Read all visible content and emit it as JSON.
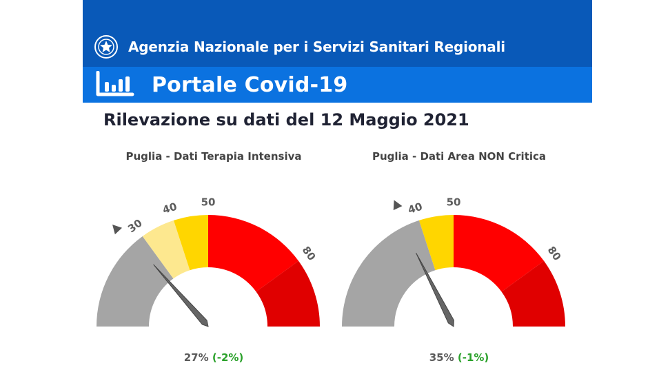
{
  "header": {
    "agency_title": "Agenzia Nazionale per i Servizi Sanitari Regionali",
    "portal_title": "Portale Covid-19"
  },
  "subtitle": "Rilevazione su dati del 12 Maggio 2021",
  "gauges": [
    {
      "title": "Puglia - Dati Terapia Intensiva",
      "value_text": "27%",
      "delta_text": "(-2%)",
      "value": 27,
      "threshold_marker": 30,
      "bands": [
        {
          "from": 0,
          "to": 30,
          "color": "#a5a5a5"
        },
        {
          "from": 30,
          "to": 40,
          "color": "#fde88f"
        },
        {
          "from": 40,
          "to": 50,
          "color": "#ffd600"
        },
        {
          "from": 50,
          "to": 80,
          "color": "#ff0000"
        },
        {
          "from": 80,
          "to": 100,
          "color": "#e00000"
        }
      ],
      "ticks": [
        "30",
        "40",
        "50",
        "80"
      ]
    },
    {
      "title": "Puglia - Dati Area NON Critica",
      "value_text": "35%",
      "delta_text": "(-1%)",
      "value": 35,
      "threshold_marker": 40,
      "bands": [
        {
          "from": 0,
          "to": 40,
          "color": "#a5a5a5"
        },
        {
          "from": 40,
          "to": 50,
          "color": "#ffd600"
        },
        {
          "from": 50,
          "to": 80,
          "color": "#ff0000"
        },
        {
          "from": 80,
          "to": 100,
          "color": "#e00000"
        }
      ],
      "ticks": [
        "40",
        "50",
        "80"
      ]
    }
  ],
  "colors": {
    "top_band": "#0959b8",
    "portal_band": "#0b72e0",
    "delta": "#2aa12a"
  }
}
